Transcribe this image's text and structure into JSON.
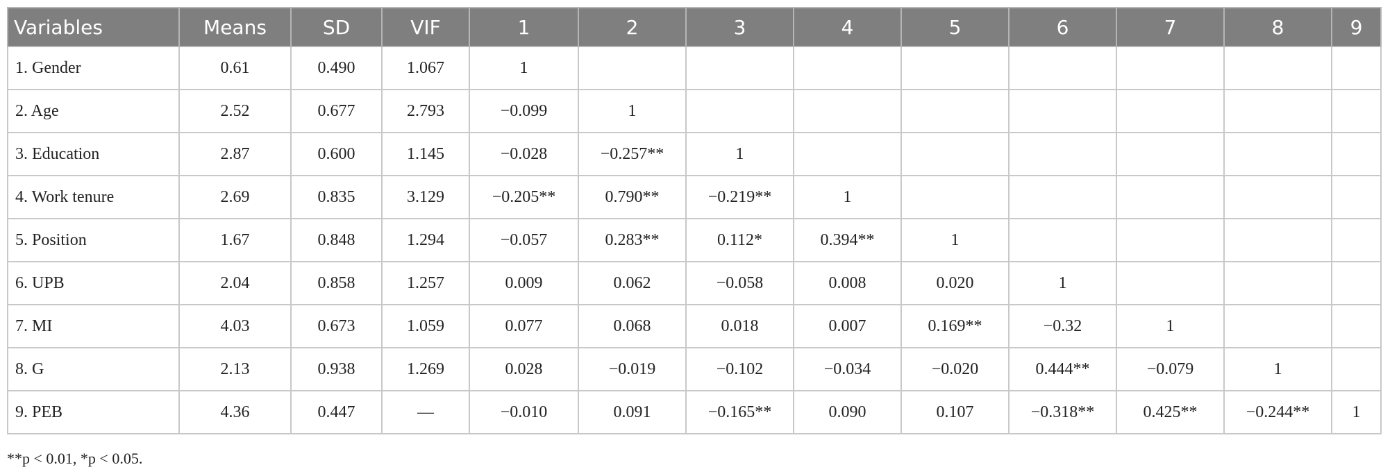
{
  "table": {
    "header": [
      "Variables",
      "Means",
      "SD",
      "VIF",
      "1",
      "2",
      "3",
      "4",
      "5",
      "6",
      "7",
      "8",
      "9"
    ],
    "rows": [
      [
        "1. Gender",
        "0.61",
        "0.490",
        "1.067",
        "1"
      ],
      [
        "2. Age",
        "2.52",
        "0.677",
        "2.793",
        "−0.099",
        "1"
      ],
      [
        "3. Education",
        "2.87",
        "0.600",
        "1.145",
        "−0.028",
        "−0.257**",
        "1"
      ],
      [
        "4. Work tenure",
        "2.69",
        "0.835",
        "3.129",
        "−0.205**",
        "0.790**",
        "−0.219**",
        "1"
      ],
      [
        "5. Position",
        "1.67",
        "0.848",
        "1.294",
        "−0.057",
        "0.283**",
        "0.112*",
        "0.394**",
        "1"
      ],
      [
        "6. UPB",
        "2.04",
        "0.858",
        "1.257",
        "0.009",
        "0.062",
        "−0.058",
        "0.008",
        "0.020",
        "1"
      ],
      [
        "7. MI",
        "4.03",
        "0.673",
        "1.059",
        "0.077",
        "0.068",
        "0.018",
        "0.007",
        "0.169**",
        "−0.32",
        "1"
      ],
      [
        "8. G",
        "2.13",
        "0.938",
        "1.269",
        "0.028",
        "−0.019",
        "−0.102",
        "−0.034",
        "−0.020",
        "0.444**",
        "−0.079",
        "1"
      ],
      [
        "9. PEB",
        "4.36",
        "0.447",
        "—",
        "−0.010",
        "0.091",
        "−0.165**",
        "0.090",
        "0.107",
        "−0.318**",
        "0.425**",
        "−0.244**",
        "1"
      ]
    ]
  },
  "footnote": "**p < 0.01, *p < 0.05."
}
